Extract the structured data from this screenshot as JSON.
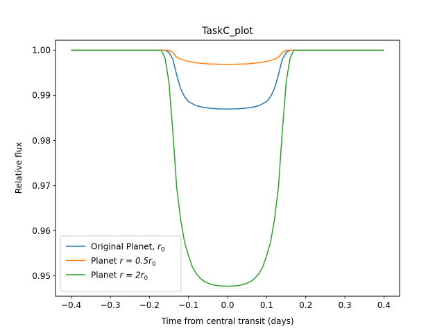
{
  "chart_data": {
    "type": "line",
    "title": "TaskC_plot",
    "xlabel": "Time from central transit (days)",
    "ylabel": "Relative flux",
    "xlim": [
      -0.44,
      0.44
    ],
    "ylim": [
      0.9455,
      1.0022
    ],
    "xticks": [
      -0.4,
      -0.3,
      -0.2,
      -0.1,
      0.0,
      0.1,
      0.2,
      0.3,
      0.4
    ],
    "xtick_labels": [
      "−0.4",
      "−0.3",
      "−0.2",
      "−0.1",
      "0.0",
      "0.1",
      "0.2",
      "0.3",
      "0.4"
    ],
    "yticks": [
      0.95,
      0.96,
      0.97,
      0.98,
      0.99,
      1.0
    ],
    "ytick_labels": [
      "0.95",
      "0.96",
      "0.97",
      "0.98",
      "0.99",
      "1.00"
    ],
    "grid": false,
    "legend_position": "lower-left",
    "series": [
      {
        "name": "Original Planet, r0",
        "legend_main": "Original Planet, ",
        "legend_var": "r",
        "legend_sub": "0",
        "color": "#1f77b4",
        "x": [
          -0.4,
          -0.16,
          -0.15,
          -0.14,
          -0.13,
          -0.12,
          -0.11,
          -0.1,
          -0.08,
          -0.06,
          -0.04,
          -0.02,
          0.0,
          0.02,
          0.04,
          0.06,
          0.08,
          0.1,
          0.11,
          0.12,
          0.13,
          0.14,
          0.15,
          0.16,
          0.4
        ],
        "y": [
          1.0,
          1.0,
          0.9995,
          0.998,
          0.9945,
          0.9915,
          0.9897,
          0.9886,
          0.9877,
          0.9873,
          0.9871,
          0.98698,
          0.98697,
          0.98698,
          0.9871,
          0.9873,
          0.9877,
          0.9886,
          0.9897,
          0.9915,
          0.9945,
          0.998,
          0.9995,
          1.0,
          1.0
        ]
      },
      {
        "name": "Planet r = 0.5r0",
        "legend_main": "Planet ",
        "legend_var": "r = 0.5r",
        "legend_sub": "0",
        "color": "#ff7f0e",
        "x": [
          -0.4,
          -0.15,
          -0.14,
          -0.13,
          -0.12,
          -0.1,
          -0.08,
          -0.05,
          0.0,
          0.05,
          0.08,
          0.1,
          0.12,
          0.13,
          0.14,
          0.15,
          0.4
        ],
        "y": [
          1.0,
          1.0,
          0.9995,
          0.9984,
          0.998,
          0.9975,
          0.9972,
          0.99695,
          0.99685,
          0.99695,
          0.9972,
          0.9975,
          0.998,
          0.9984,
          0.9995,
          1.0,
          1.0
        ]
      },
      {
        "name": "Planet r = 2r0",
        "legend_main": "Planet ",
        "legend_var": "r = 2r",
        "legend_sub": "0",
        "color": "#2ca02c",
        "x": [
          -0.4,
          -0.17,
          -0.16,
          -0.15,
          -0.14,
          -0.13,
          -0.12,
          -0.11,
          -0.1,
          -0.09,
          -0.08,
          -0.07,
          -0.06,
          -0.05,
          -0.04,
          -0.03,
          -0.02,
          -0.01,
          0.0,
          0.01,
          0.02,
          0.03,
          0.04,
          0.05,
          0.06,
          0.07,
          0.08,
          0.09,
          0.1,
          0.11,
          0.12,
          0.13,
          0.14,
          0.15,
          0.16,
          0.17,
          0.4
        ],
        "y": [
          1.0,
          1.0,
          0.9983,
          0.993,
          0.982,
          0.9695,
          0.9625,
          0.9575,
          0.9545,
          0.952,
          0.9505,
          0.9495,
          0.9488,
          0.9484,
          0.9481,
          0.9479,
          0.9478,
          0.94775,
          0.9477,
          0.94775,
          0.9478,
          0.9479,
          0.9481,
          0.9484,
          0.9488,
          0.9495,
          0.9505,
          0.952,
          0.9545,
          0.9575,
          0.9625,
          0.9695,
          0.982,
          0.993,
          0.9983,
          1.0,
          1.0
        ]
      }
    ]
  }
}
